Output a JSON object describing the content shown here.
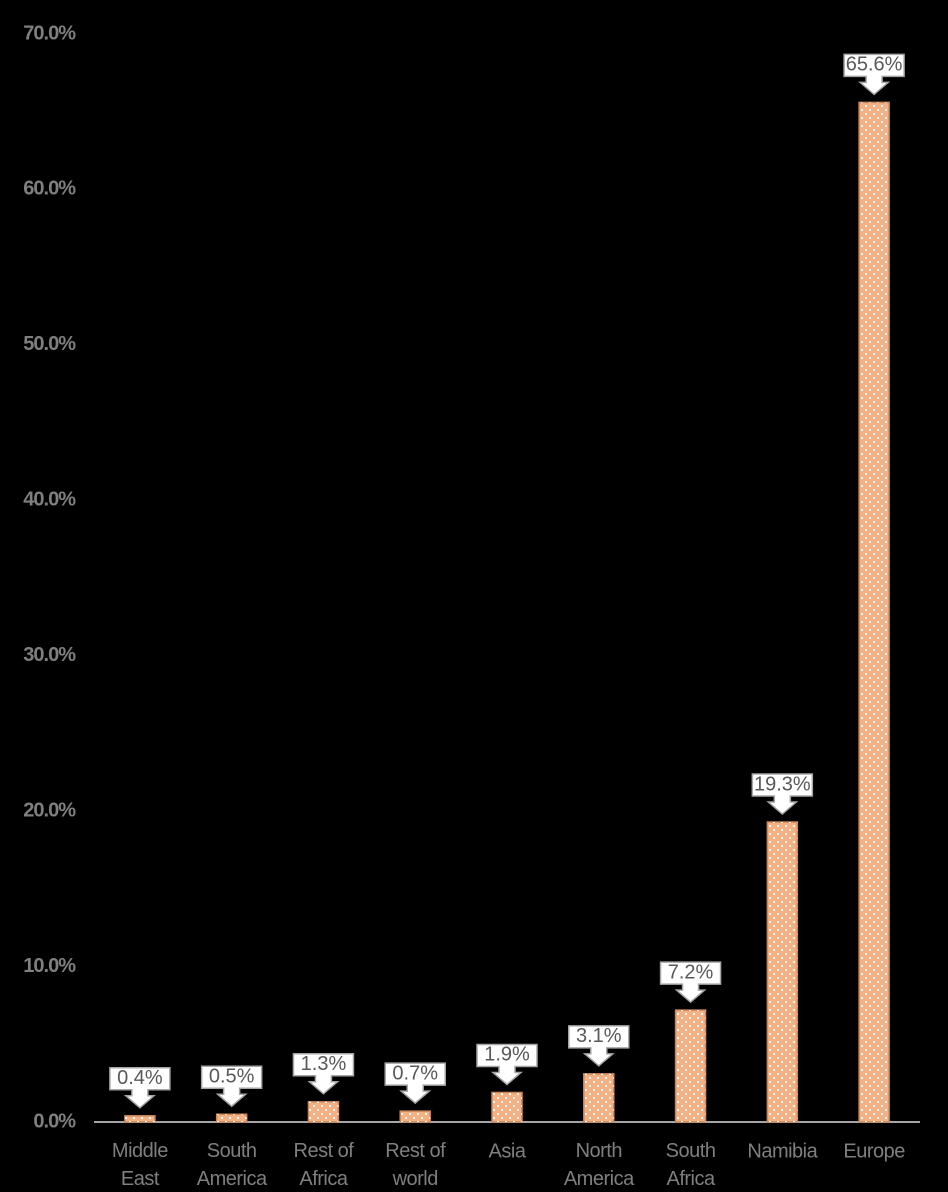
{
  "chart_data": {
    "type": "bar",
    "categories": [
      "Middle East",
      "South America",
      "Rest of Africa",
      "Rest of world",
      "Asia",
      "North America",
      "South Africa",
      "Namibia",
      "Europe"
    ],
    "values": [
      0.4,
      0.5,
      1.3,
      0.7,
      1.9,
      3.1,
      7.2,
      19.3,
      65.6
    ],
    "value_labels": [
      "0.4%",
      "0.5%",
      "1.3%",
      "0.7%",
      "1.9%",
      "3.1%",
      "7.2%",
      "19.3%",
      "65.6%"
    ],
    "color": "#f4b183",
    "ylim": [
      0,
      70
    ],
    "yticks": [
      {
        "value": 0,
        "label": "0.0%"
      },
      {
        "value": 10,
        "label": "10.0%"
      },
      {
        "value": 20,
        "label": "20.0%"
      },
      {
        "value": 30,
        "label": "30.0%"
      },
      {
        "value": 40,
        "label": "40.0%"
      },
      {
        "value": 50,
        "label": "50.0%"
      },
      {
        "value": 60,
        "label": "60.0%"
      },
      {
        "value": 70,
        "label": "70.0%"
      }
    ]
  }
}
